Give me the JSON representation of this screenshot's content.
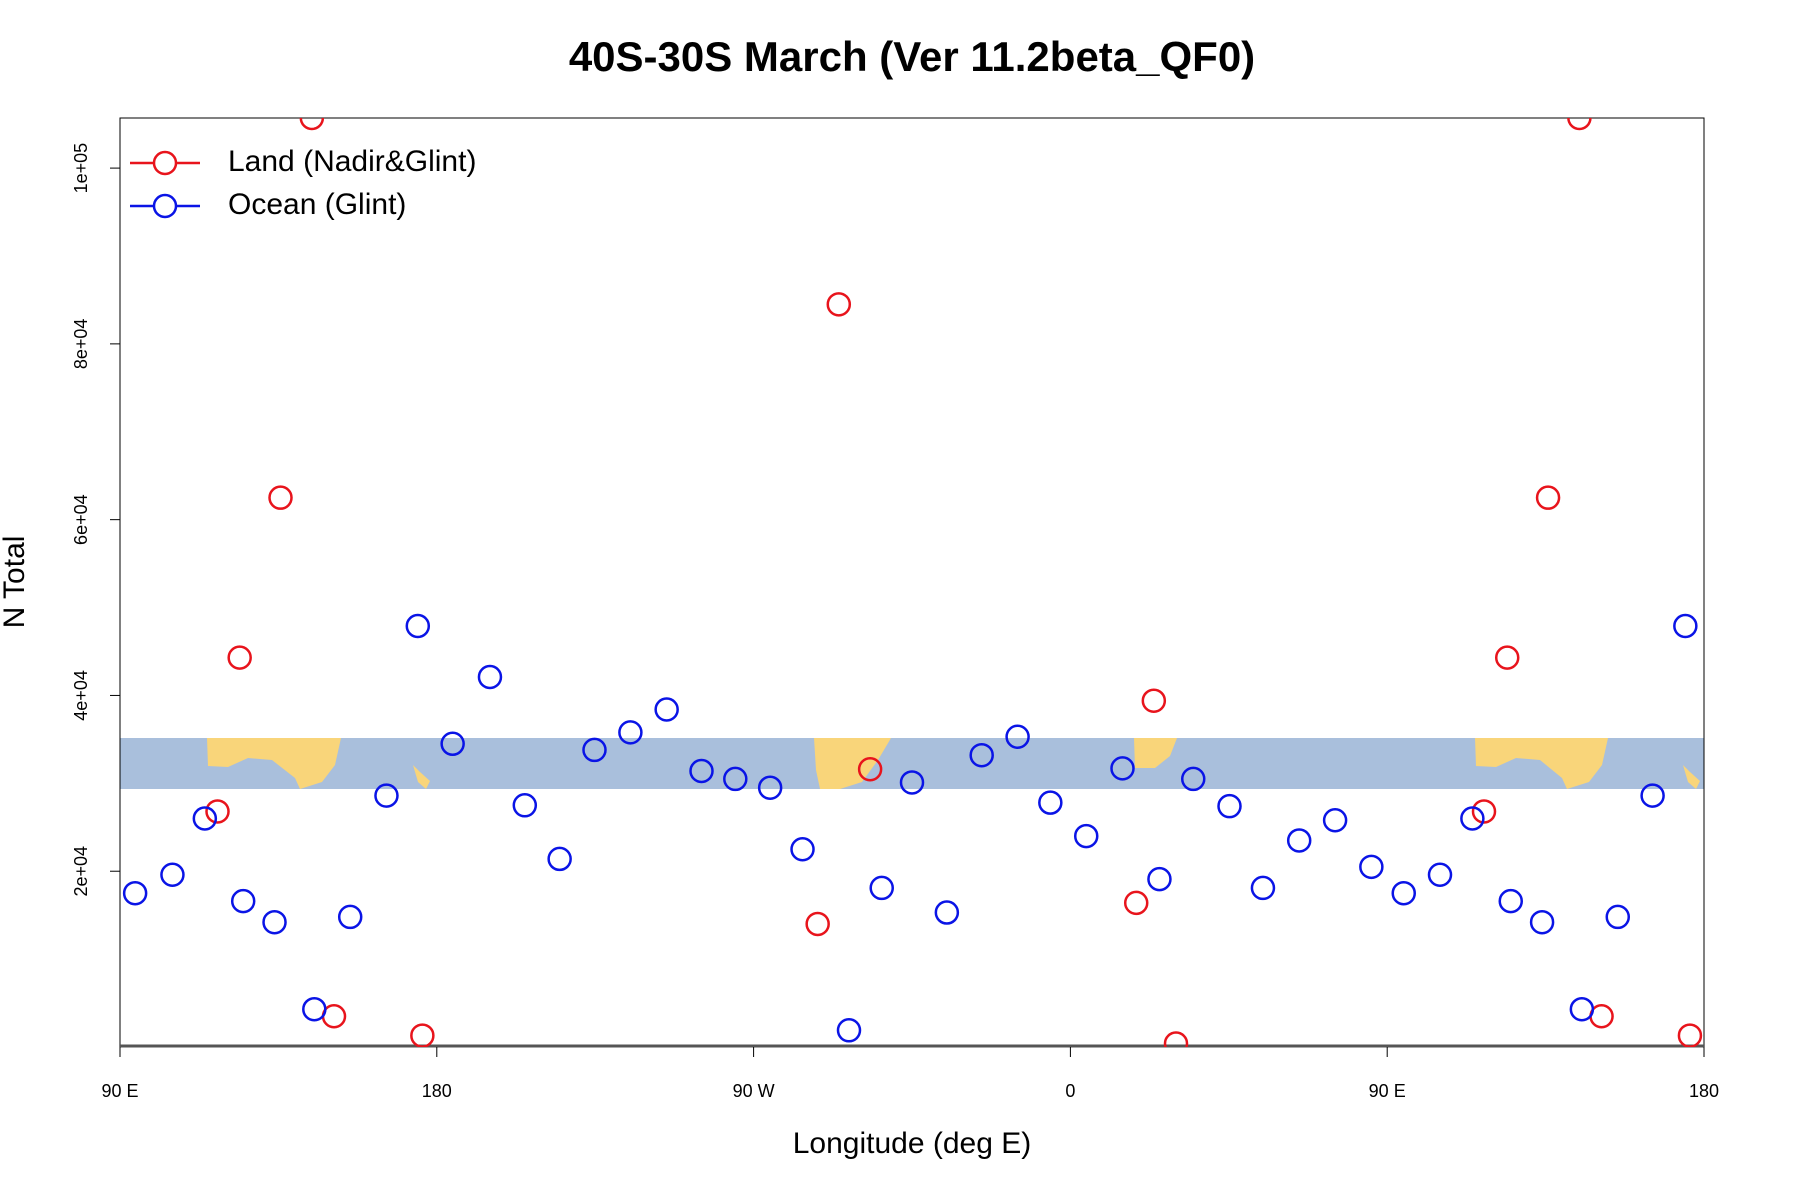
{
  "chart_data": {
    "type": "scatter",
    "title": "40S-30S March (Ver 11.2beta_QF0)",
    "x_label": "Longitude (deg E)",
    "y_label": "N Total",
    "xlim": [
      90,
      540
    ],
    "ylim": [
      0,
      105700
    ],
    "xticks": [
      {
        "value": 90,
        "label": "90 E"
      },
      180,
      {
        "value": 270,
        "label": "90 W"
      },
      {
        "value": 360,
        "label": "0"
      },
      {
        "value": 450,
        "label": "90 E"
      },
      {
        "value": 540,
        "label": "180"
      }
    ],
    "yticks": [
      {
        "value": 20000,
        "label": "2e+04"
      },
      {
        "value": 40000,
        "label": "4e+04"
      },
      {
        "value": 60000,
        "label": "6e+04"
      },
      {
        "value": 80000,
        "label": "8e+04"
      },
      {
        "value": 100000,
        "label": "1e+05"
      }
    ],
    "legend": "topleft",
    "series": [
      {
        "name": "Land (Nadir&Glint)",
        "color": "#e8141c",
        "x": [
          117.7,
          124.0,
          135.6,
          144.5,
          150.8,
          175.9,
          288.2,
          294.2,
          303.1,
          378.7,
          383.7,
          390.0,
          477.5,
          484.1,
          495.7,
          504.6,
          510.9,
          536.0
        ],
        "values": [
          26800,
          44300,
          62500,
          105700,
          3500,
          1300,
          14000,
          84500,
          31600,
          16400,
          39400,
          400,
          26800,
          44300,
          62500,
          105700,
          3500,
          1300
        ]
      },
      {
        "name": "Ocean (Glint)",
        "color": "#0a14e6",
        "x": [
          94.3,
          104.9,
          114.1,
          125.0,
          133.9,
          145.2,
          155.4,
          165.7,
          174.6,
          184.5,
          195.1,
          205.0,
          214.9,
          224.8,
          235.0,
          245.3,
          255.2,
          264.8,
          274.7,
          283.9,
          297.1,
          306.4,
          315.0,
          324.9,
          334.8,
          345.0,
          354.3,
          364.5,
          374.8,
          385.3,
          394.9,
          405.2,
          414.7,
          425.0,
          435.2,
          445.5,
          454.7,
          465.0,
          474.2,
          485.1,
          494.0,
          505.3,
          515.5,
          525.4,
          534.7
        ],
        "values": [
          17500,
          19600,
          26000,
          16600,
          14200,
          4300,
          14800,
          28600,
          47900,
          34500,
          42100,
          27500,
          21400,
          33800,
          35800,
          38400,
          31400,
          30500,
          29500,
          22500,
          1900,
          18100,
          30100,
          15300,
          33200,
          35300,
          27800,
          24000,
          31700,
          19100,
          30500,
          27400,
          18100,
          23500,
          25800,
          20500,
          17500,
          19600,
          26000,
          16600,
          14200,
          4300,
          14800,
          28600,
          47900
        ]
      }
    ]
  }
}
